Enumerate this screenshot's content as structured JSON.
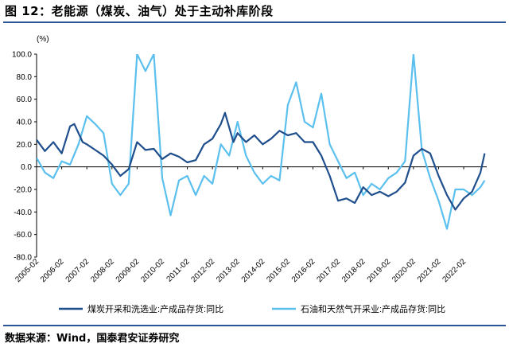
{
  "figure_title": "图 12：老能源（煤炭、油气）处于主动补库阶段",
  "source_note": "数据来源：Wind，国泰君安证券研究",
  "colors": {
    "rule": "#2b5797",
    "series_dark": "#1f4e8c",
    "series_light": "#5bc0ee"
  },
  "chart_data": {
    "type": "line",
    "unit": "(%)",
    "ylim": [
      -80,
      100
    ],
    "y_ticks": [
      "100.0",
      "80.0",
      "60.0",
      "40.0",
      "20.0",
      "0.0",
      "-20.0",
      "-40.0",
      "-60.0",
      "-80.0"
    ],
    "x_ticks": [
      "2005-02",
      "2006-02",
      "2007-02",
      "2008-02",
      "2009-02",
      "2010-02",
      "2011-02",
      "2012-02",
      "2013-02",
      "2014-02",
      "2015-02",
      "2016-02",
      "2017-02",
      "2018-02",
      "2019-02",
      "2020-02",
      "2021-02",
      "2022-02"
    ],
    "legend_position": "bottom",
    "series": [
      {
        "name": "煤炭开采和洗选业:产成品存货:同比",
        "color": "#1f4e8c",
        "points": [
          [
            "2005-02",
            24
          ],
          [
            "2005-06",
            14
          ],
          [
            "2005-10",
            22
          ],
          [
            "2006-02",
            12
          ],
          [
            "2006-06",
            36
          ],
          [
            "2006-08",
            38
          ],
          [
            "2006-12",
            22
          ],
          [
            "2007-02",
            20
          ],
          [
            "2007-06",
            15
          ],
          [
            "2007-10",
            10
          ],
          [
            "2008-02",
            2
          ],
          [
            "2008-06",
            -8
          ],
          [
            "2008-10",
            -2
          ],
          [
            "2009-02",
            22
          ],
          [
            "2009-06",
            15
          ],
          [
            "2009-10",
            16
          ],
          [
            "2010-02",
            7
          ],
          [
            "2010-06",
            12
          ],
          [
            "2010-10",
            9
          ],
          [
            "2011-02",
            4
          ],
          [
            "2011-06",
            6
          ],
          [
            "2011-10",
            20
          ],
          [
            "2012-02",
            25
          ],
          [
            "2012-06",
            38
          ],
          [
            "2012-08",
            48
          ],
          [
            "2012-12",
            22
          ],
          [
            "2013-02",
            30
          ],
          [
            "2013-06",
            22
          ],
          [
            "2013-10",
            28
          ],
          [
            "2014-02",
            20
          ],
          [
            "2014-06",
            25
          ],
          [
            "2014-10",
            32
          ],
          [
            "2015-02",
            28
          ],
          [
            "2015-06",
            30
          ],
          [
            "2015-10",
            22
          ],
          [
            "2016-02",
            22
          ],
          [
            "2016-06",
            10
          ],
          [
            "2016-10",
            -8
          ],
          [
            "2017-02",
            -30
          ],
          [
            "2017-06",
            -28
          ],
          [
            "2017-10",
            -32
          ],
          [
            "2018-02",
            -18
          ],
          [
            "2018-06",
            -25
          ],
          [
            "2018-10",
            -22
          ],
          [
            "2019-02",
            -26
          ],
          [
            "2019-06",
            -22
          ],
          [
            "2019-10",
            -14
          ],
          [
            "2020-02",
            10
          ],
          [
            "2020-06",
            16
          ],
          [
            "2020-10",
            12
          ],
          [
            "2021-02",
            -8
          ],
          [
            "2021-06",
            -25
          ],
          [
            "2021-10",
            -38
          ],
          [
            "2022-02",
            -28
          ],
          [
            "2022-06",
            -22
          ],
          [
            "2022-10",
            -5
          ],
          [
            "2022-12",
            12
          ]
        ]
      },
      {
        "name": "石油和天然气开采业:产成品存货:同比",
        "color": "#5bc0ee",
        "points": [
          [
            "2005-02",
            8
          ],
          [
            "2005-06",
            -5
          ],
          [
            "2005-10",
            -10
          ],
          [
            "2006-02",
            5
          ],
          [
            "2006-06",
            2
          ],
          [
            "2006-10",
            20
          ],
          [
            "2007-02",
            45
          ],
          [
            "2007-06",
            38
          ],
          [
            "2007-10",
            30
          ],
          [
            "2008-02",
            -15
          ],
          [
            "2008-06",
            -25
          ],
          [
            "2008-10",
            -15
          ],
          [
            "2009-02",
            100
          ],
          [
            "2009-06",
            85
          ],
          [
            "2009-10",
            100
          ],
          [
            "2010-02",
            -10
          ],
          [
            "2010-06",
            -43
          ],
          [
            "2010-10",
            -12
          ],
          [
            "2011-02",
            -8
          ],
          [
            "2011-06",
            -25
          ],
          [
            "2011-10",
            -8
          ],
          [
            "2012-02",
            -15
          ],
          [
            "2012-06",
            20
          ],
          [
            "2012-10",
            10
          ],
          [
            "2013-02",
            40
          ],
          [
            "2013-06",
            10
          ],
          [
            "2013-10",
            -5
          ],
          [
            "2014-02",
            -15
          ],
          [
            "2014-06",
            -8
          ],
          [
            "2014-10",
            -12
          ],
          [
            "2015-02",
            55
          ],
          [
            "2015-06",
            75
          ],
          [
            "2015-10",
            40
          ],
          [
            "2016-02",
            35
          ],
          [
            "2016-06",
            65
          ],
          [
            "2016-10",
            20
          ],
          [
            "2017-02",
            5
          ],
          [
            "2017-06",
            -10
          ],
          [
            "2017-10",
            -5
          ],
          [
            "2018-02",
            -25
          ],
          [
            "2018-06",
            -15
          ],
          [
            "2018-10",
            -20
          ],
          [
            "2019-02",
            -10
          ],
          [
            "2019-06",
            -5
          ],
          [
            "2019-10",
            5
          ],
          [
            "2020-02",
            100
          ],
          [
            "2020-06",
            15
          ],
          [
            "2020-10",
            -10
          ],
          [
            "2021-02",
            -30
          ],
          [
            "2021-06",
            -55
          ],
          [
            "2021-10",
            -20
          ],
          [
            "2022-02",
            -20
          ],
          [
            "2022-06",
            -25
          ],
          [
            "2022-10",
            -18
          ],
          [
            "2022-12",
            -12
          ]
        ]
      }
    ]
  }
}
